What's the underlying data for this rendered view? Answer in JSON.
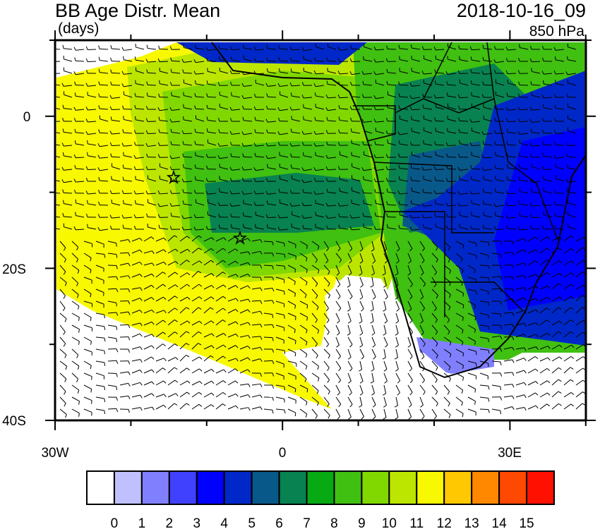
{
  "header": {
    "title": "BB Age Distr. Mean",
    "units": "(days)",
    "datetime": "2018-10-16_09",
    "level": "850 hPa"
  },
  "map": {
    "region": "Southeast Atlantic / Southern Africa",
    "lon_range": [
      "30W",
      "40E"
    ],
    "lat_range": [
      "10N",
      "40S"
    ],
    "y_tick_labels": [
      "0",
      "20S",
      "40S"
    ],
    "x_tick_labels": [
      "30W",
      "0",
      "30E"
    ],
    "overlays": [
      "wind-barbs",
      "country-borders",
      "star-markers"
    ]
  },
  "colorbar": {
    "labels": [
      "0",
      "1",
      "2",
      "3",
      "4",
      "5",
      "6",
      "7",
      "8",
      "9",
      "10",
      "11",
      "12",
      "13",
      "14",
      "15"
    ],
    "colors": [
      "#ffffff",
      "#c0c0ff",
      "#8080ff",
      "#4040ff",
      "#0000ff",
      "#0028c8",
      "#08588a",
      "#088250",
      "#08aa14",
      "#40c010",
      "#80d800",
      "#bce600",
      "#f8f800",
      "#ffc800",
      "#ff8800",
      "#ff4800",
      "#ff1000"
    ]
  }
}
